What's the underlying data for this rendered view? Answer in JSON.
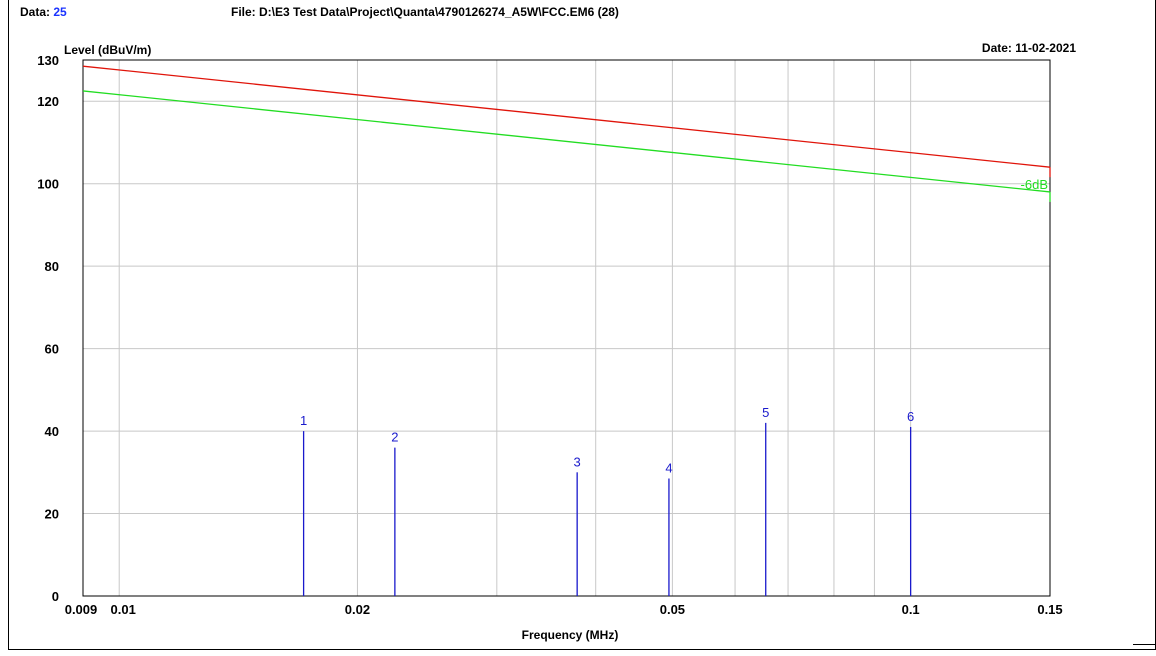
{
  "header": {
    "data_label": "Data:",
    "data_value": "25",
    "file_label": "File:",
    "file_path": "D:\\E3 Test Data\\Project\\Quanta\\4790126274_A5W\\FCC.EM6  (28)",
    "date_label": "Date:",
    "date_value": "11-02-2021"
  },
  "chart_data": {
    "type": "line",
    "ylabel": "Level (dBuV/m)",
    "xlabel": "Frequency (MHz)",
    "xscale": "log",
    "xlim": [
      0.009,
      0.15
    ],
    "ylim": [
      0,
      130
    ],
    "x_ticks": [
      0.009,
      0.01,
      0.02,
      0.05,
      0.1,
      0.15
    ],
    "x_tick_labels": [
      "0.009",
      "0.01",
      "0.02",
      "0.05",
      "0.1",
      "0.15"
    ],
    "y_ticks": [
      0,
      20,
      40,
      60,
      80,
      100,
      120,
      130
    ],
    "y_tick_labels": [
      "0",
      "20",
      "40",
      "60",
      "80",
      "100",
      "120",
      "130"
    ],
    "grid": true,
    "limit_lines": [
      {
        "color": "#e0140a",
        "points": [
          [
            0.009,
            128.5
          ],
          [
            0.15,
            104.0
          ]
        ]
      },
      {
        "color": "#22dd22",
        "points": [
          [
            0.009,
            122.5
          ],
          [
            0.15,
            98.0
          ]
        ],
        "label": "-6dB"
      }
    ],
    "markers": {
      "color": "#1a1acc",
      "points": [
        {
          "label": "1",
          "x": 0.0171,
          "y": 40.0
        },
        {
          "label": "2",
          "x": 0.0223,
          "y": 36.0
        },
        {
          "label": "3",
          "x": 0.0379,
          "y": 30.0
        },
        {
          "label": "4",
          "x": 0.0495,
          "y": 28.5
        },
        {
          "label": "5",
          "x": 0.0656,
          "y": 42.0
        },
        {
          "label": "6",
          "x": 0.1,
          "y": 41.0
        }
      ]
    }
  }
}
